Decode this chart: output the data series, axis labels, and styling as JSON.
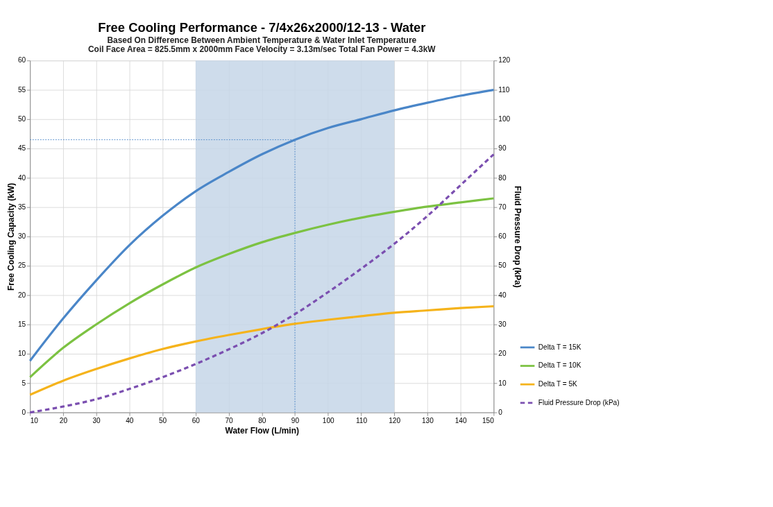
{
  "chart_data": {
    "type": "line",
    "title": "Free Cooling Performance - 7/4x26x2000/12-13 - Water",
    "subtitle": "Based On Difference Between Ambient Temperature & Water Inlet Temperature",
    "annotations": [
      "Coil Face Area = 825.5mm x 2000mm     Face Velocity = 3.13m/sec     Total Fan Power = 4.3kW"
    ],
    "xlabel": "Water Flow (L/min)",
    "ylabel": "Free Cooling Capacity (kW)",
    "y2label": "Fluid Pressure Drop (kPa)",
    "x": [
      10,
      20,
      30,
      40,
      50,
      60,
      70,
      80,
      90,
      100,
      110,
      120,
      130,
      140,
      150
    ],
    "series": [
      {
        "name": "Delta T = 15K",
        "color": "#4a86c8",
        "values": [
          8.8,
          16,
          22.5,
          28.5,
          33.5,
          37.7,
          41,
          44,
          46.5,
          48.5,
          50,
          51.5,
          52.8,
          54,
          55
        ]
      },
      {
        "name": "Delta T = 10K",
        "color": "#7cc242",
        "values": [
          6,
          11,
          15,
          18.6,
          21.8,
          24.7,
          27,
          29,
          30.6,
          32,
          33.2,
          34.2,
          35.1,
          35.8,
          36.5
        ]
      },
      {
        "name": "Delta T = 5K",
        "color": "#f5b31b",
        "values": [
          3,
          5.4,
          7.4,
          9.2,
          10.8,
          12.1,
          13.2,
          14.2,
          15.1,
          15.8,
          16.4,
          17,
          17.4,
          17.8,
          18.1
        ]
      },
      {
        "name": "Fluid Pressure Drop (kPa)",
        "color": "#7b4fb0",
        "axis": "y2",
        "line_style": "dashed",
        "values": [
          0,
          2,
          4.5,
          8,
          12,
          16.5,
          21.5,
          27,
          33.5,
          41,
          49,
          57.5,
          67,
          77.5,
          88
        ]
      }
    ],
    "xlim": [
      10,
      150
    ],
    "xticks": [
      10,
      20,
      30,
      40,
      50,
      60,
      70,
      80,
      90,
      100,
      110,
      120,
      130,
      140,
      150
    ],
    "ylim": [
      0,
      60
    ],
    "yticks": [
      0,
      5,
      10,
      15,
      20,
      25,
      30,
      35,
      40,
      45,
      50,
      55,
      60
    ],
    "y2lim": [
      0,
      120
    ],
    "y2ticks": [
      0,
      10,
      20,
      30,
      40,
      50,
      60,
      70,
      80,
      90,
      100,
      110,
      120
    ],
    "bands": [
      {
        "axis": "x",
        "from": 60,
        "to": 120,
        "color": "#c6d6e8"
      }
    ],
    "ref_lines": [
      {
        "axis": "y",
        "value": 46.5,
        "color": "#4a86c8",
        "line_style": "dotted"
      },
      {
        "axis": "x",
        "value": 90,
        "color": "#4a86c8",
        "line_style": "dotted"
      }
    ],
    "grid": true,
    "legend": "bottom right",
    "line_style": "solid",
    "marker": "none"
  }
}
